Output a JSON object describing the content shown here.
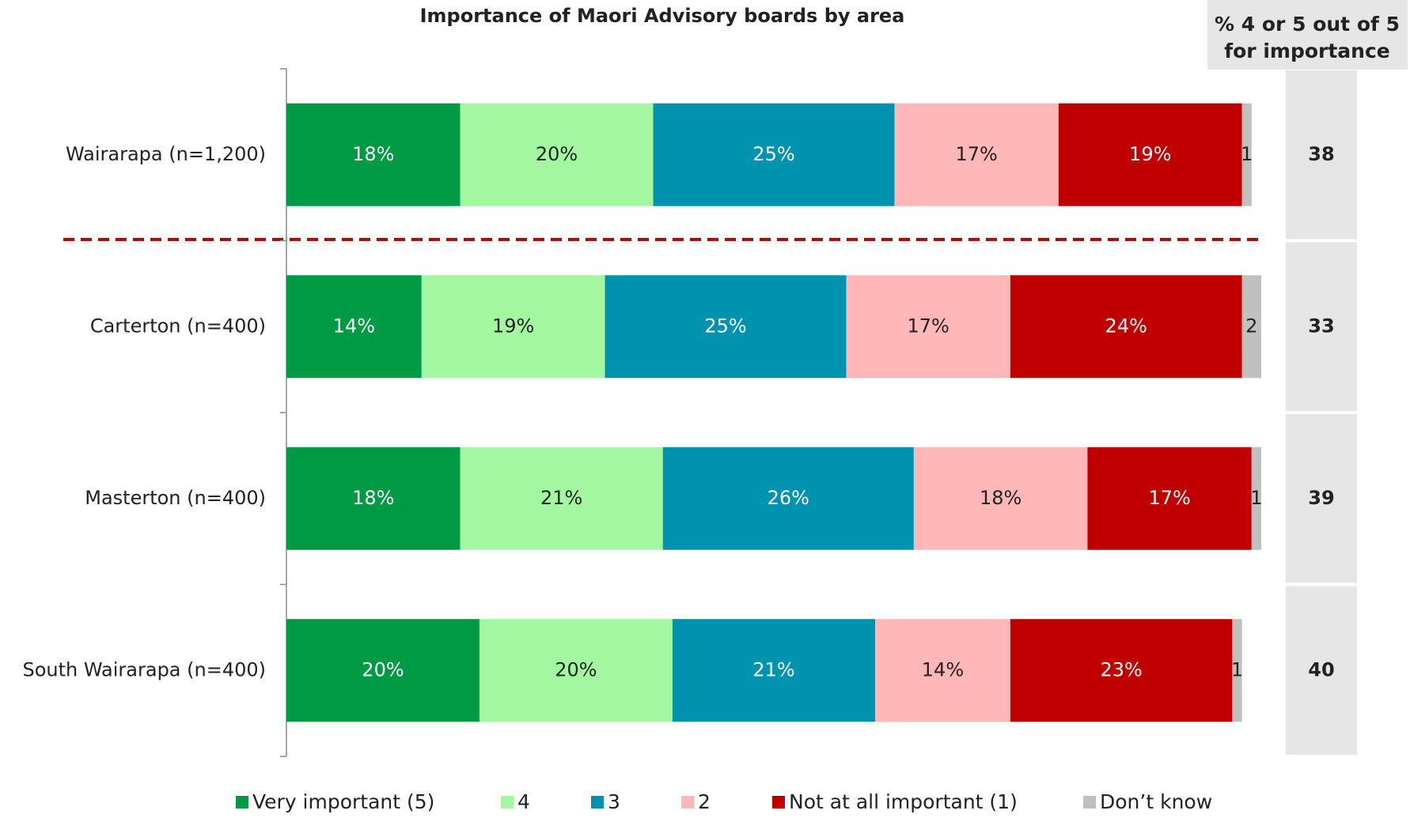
{
  "chart_data": {
    "type": "bar",
    "orientation": "horizontal",
    "stacked": true,
    "title": "Importance of Maori Advisory boards by area",
    "categories": [
      "Wairarapa (n=1,200)",
      "Carterton (n=400)",
      "Masterton (n=400)",
      "South Wairarapa (n=400)"
    ],
    "series": [
      {
        "name": "Very important (5)",
        "color": "#009a44",
        "label_color": "#ffffff",
        "values": [
          18,
          14,
          18,
          20
        ],
        "value_labels": [
          "18%",
          "14%",
          "18%",
          "20%"
        ]
      },
      {
        "name": "4",
        "color": "#a3f7a0",
        "label_color": "#222222",
        "values": [
          20,
          19,
          21,
          20
        ],
        "value_labels": [
          "20%",
          "19%",
          "21%",
          "20%"
        ]
      },
      {
        "name": "3",
        "color": "#0093b0",
        "label_color": "#ffffff",
        "values": [
          25,
          25,
          26,
          21
        ],
        "value_labels": [
          "25%",
          "25%",
          "26%",
          "21%"
        ]
      },
      {
        "name": "2",
        "color": "#ffb7b7",
        "label_color": "#222222",
        "values": [
          17,
          17,
          18,
          14
        ],
        "value_labels": [
          "17%",
          "17%",
          "18%",
          "14%"
        ]
      },
      {
        "name": "Not at all important (1)",
        "color": "#c00000",
        "label_color": "#ffffff",
        "values": [
          19,
          24,
          17,
          23
        ],
        "value_labels": [
          "19%",
          "24%",
          "17%",
          "23%"
        ]
      },
      {
        "name": "Don’t know",
        "color": "#c0c0c0",
        "label_color": "#222222",
        "values": [
          1,
          2,
          1,
          1
        ]
      }
    ],
    "side_header": [
      "% 4 or 5 out of 5",
      "for importance"
    ],
    "side_values": [
      38,
      33,
      39,
      40
    ]
  }
}
